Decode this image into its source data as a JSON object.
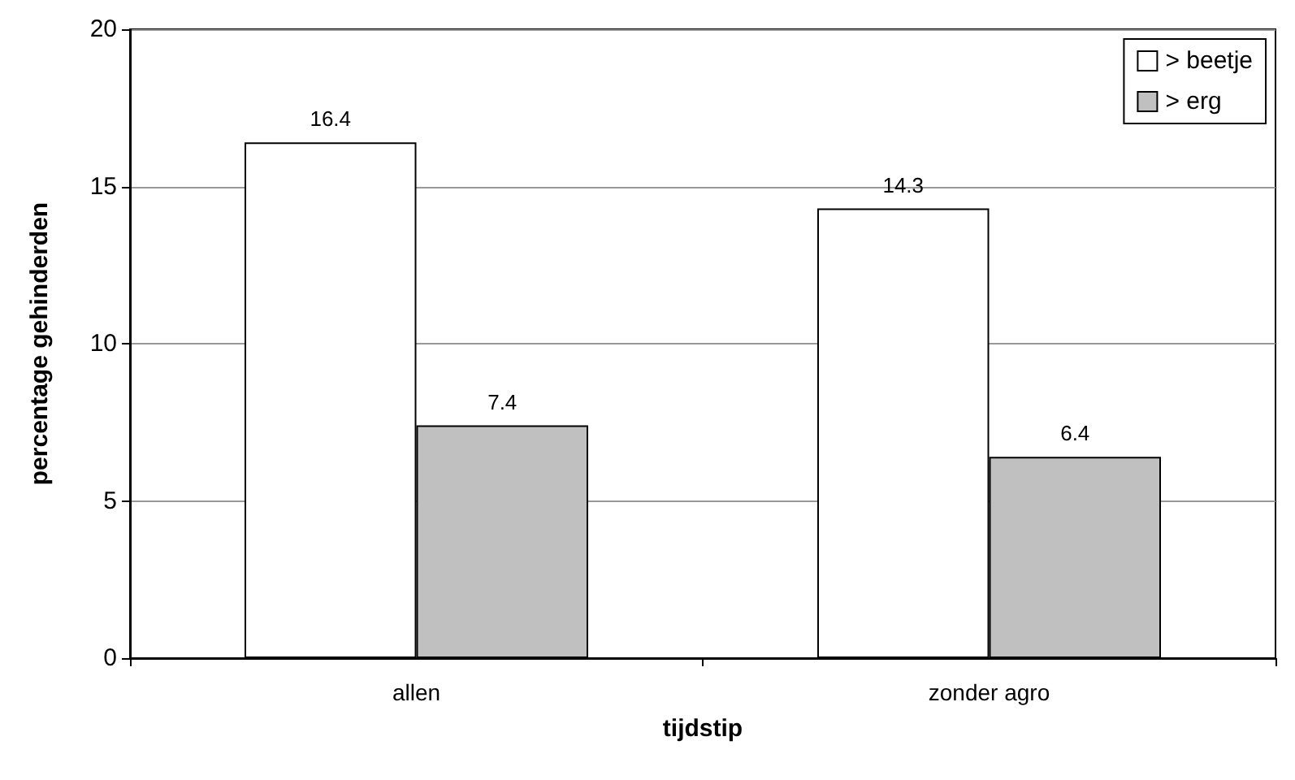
{
  "chart_data": {
    "type": "bar",
    "xlabel": "tijdstip",
    "ylabel": "percentage gehinderden",
    "categories": [
      "allen",
      "zonder agro"
    ],
    "series": [
      {
        "name": "> beetje",
        "color": "#ffffff",
        "values": [
          16.4,
          14.3
        ]
      },
      {
        "name": "> erg",
        "color": "#c0c0c0",
        "values": [
          7.4,
          6.4
        ]
      }
    ],
    "ylim": [
      0,
      20
    ],
    "yticks": [
      0,
      5,
      10,
      15,
      20
    ],
    "grid": "y",
    "legend": "top right",
    "data_labels": true
  }
}
